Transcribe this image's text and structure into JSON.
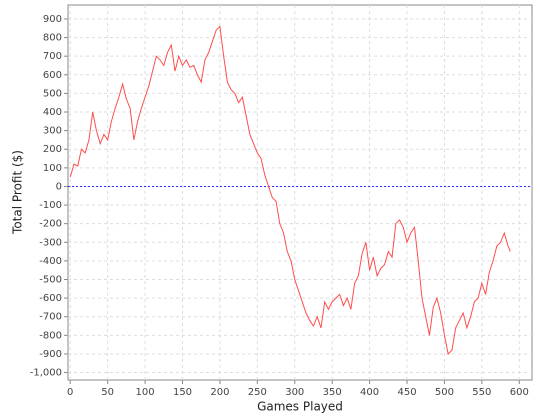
{
  "chart_data": {
    "type": "line",
    "x_label": "Games Played",
    "y_label": "Total Profit ($)",
    "x": [
      0,
      5,
      10,
      15,
      20,
      25,
      30,
      35,
      40,
      45,
      50,
      55,
      60,
      65,
      70,
      75,
      80,
      85,
      90,
      95,
      100,
      105,
      110,
      115,
      120,
      125,
      130,
      135,
      140,
      145,
      150,
      155,
      160,
      165,
      170,
      175,
      180,
      185,
      190,
      195,
      200,
      205,
      210,
      215,
      220,
      225,
      230,
      235,
      240,
      245,
      250,
      255,
      260,
      265,
      270,
      275,
      280,
      285,
      290,
      295,
      300,
      305,
      310,
      315,
      320,
      325,
      330,
      335,
      340,
      345,
      350,
      355,
      360,
      365,
      370,
      375,
      380,
      385,
      390,
      395,
      400,
      405,
      410,
      415,
      420,
      425,
      430,
      435,
      440,
      445,
      450,
      455,
      460,
      465,
      470,
      475,
      480,
      485,
      490,
      495,
      500,
      505,
      510,
      515,
      520,
      525,
      530,
      535,
      540,
      545,
      550,
      555,
      560,
      565,
      570,
      575,
      580,
      585,
      588
    ],
    "values": [
      50,
      120,
      110,
      200,
      180,
      250,
      400,
      300,
      230,
      280,
      250,
      350,
      420,
      480,
      550,
      470,
      420,
      250,
      350,
      420,
      480,
      540,
      620,
      700,
      680,
      650,
      720,
      760,
      620,
      700,
      650,
      680,
      640,
      650,
      600,
      560,
      680,
      720,
      780,
      840,
      860,
      700,
      560,
      520,
      500,
      450,
      480,
      380,
      280,
      230,
      180,
      150,
      60,
      0,
      -60,
      -80,
      -200,
      -250,
      -350,
      -400,
      -500,
      -560,
      -620,
      -680,
      -720,
      -750,
      -700,
      -760,
      -620,
      -660,
      -620,
      -600,
      -580,
      -640,
      -600,
      -660,
      -520,
      -480,
      -360,
      -300,
      -450,
      -380,
      -480,
      -440,
      -420,
      -350,
      -380,
      -200,
      -180,
      -220,
      -300,
      -250,
      -220,
      -400,
      -600,
      -700,
      -800,
      -650,
      -600,
      -680,
      -800,
      -900,
      -880,
      -760,
      -720,
      -680,
      -760,
      -700,
      -620,
      -600,
      -520,
      -580,
      -460,
      -400,
      -320,
      -300,
      -250,
      -320,
      -350
    ],
    "color": "#ff4d4d",
    "xlim": [
      -3,
      617
    ],
    "ylim": [
      -1040,
      975
    ],
    "xticks": [
      0,
      50,
      100,
      150,
      200,
      250,
      300,
      350,
      400,
      450,
      500,
      550,
      600
    ],
    "yticks": [
      {
        "value": -1000,
        "label": "-1,000"
      },
      -900,
      -800,
      -700,
      -600,
      -500,
      -400,
      -300,
      -200,
      -100,
      0,
      100,
      200,
      300,
      400,
      500,
      600,
      700,
      800,
      900
    ],
    "grid": true,
    "zero_line_color": "#3333ff"
  }
}
